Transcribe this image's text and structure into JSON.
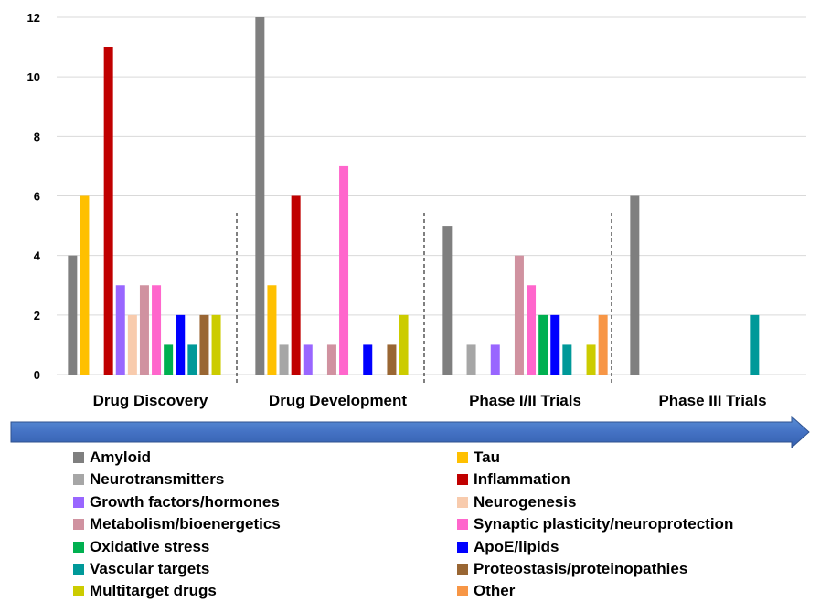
{
  "chart_data": {
    "type": "bar",
    "title": "",
    "xlabel": "",
    "ylabel": "",
    "ylim": [
      0,
      12
    ],
    "yticks": [
      "0",
      "2",
      "4",
      "6",
      "8",
      "10",
      "12"
    ],
    "grid": true,
    "legend_position": "bottom",
    "categories": [
      "Drug Discovery",
      "Drug Development",
      "Phase I/II Trials",
      "Phase III Trials"
    ],
    "series": [
      {
        "name": "Amyloid",
        "color": "#7F7F7F",
        "values": [
          4,
          12,
          5,
          6
        ]
      },
      {
        "name": "Tau",
        "color": "#FFC000",
        "values": [
          6,
          3,
          0,
          0
        ]
      },
      {
        "name": "Neurotransmitters",
        "color": "#A6A6A6",
        "values": [
          0,
          1,
          1,
          0
        ]
      },
      {
        "name": "Inflammation",
        "color": "#C00000",
        "values": [
          11,
          6,
          0,
          0
        ]
      },
      {
        "name": "Growth factors/hormones",
        "color": "#9966FF",
        "values": [
          3,
          1,
          1,
          0
        ]
      },
      {
        "name": "Neurogenesis",
        "color": "#F8CBAD",
        "values": [
          2,
          0,
          0,
          0
        ]
      },
      {
        "name": "Metabolism/bioenergetics",
        "color": "#D092A0",
        "values": [
          3,
          1,
          4,
          0
        ]
      },
      {
        "name": "Synaptic plasticity/neuroprotection",
        "color": "#FF66CC",
        "values": [
          3,
          7,
          3,
          0
        ]
      },
      {
        "name": "Oxidative stress",
        "color": "#00B050",
        "values": [
          1,
          0,
          2,
          0
        ]
      },
      {
        "name": "ApoE/lipids",
        "color": "#0000FF",
        "values": [
          2,
          1,
          2,
          0
        ]
      },
      {
        "name": "Vascular targets",
        "color": "#009999",
        "values": [
          1,
          0,
          1,
          2
        ]
      },
      {
        "name": "Proteostasis/proteinopathies",
        "color": "#996633",
        "values": [
          2,
          1,
          0,
          0
        ]
      },
      {
        "name": "Multitarget drugs",
        "color": "#CCCC00",
        "values": [
          2,
          2,
          1,
          0
        ]
      },
      {
        "name": "Other",
        "color": "#F79646",
        "values": [
          0,
          0,
          2,
          0
        ]
      }
    ],
    "arrow_color": "#4472C4"
  }
}
